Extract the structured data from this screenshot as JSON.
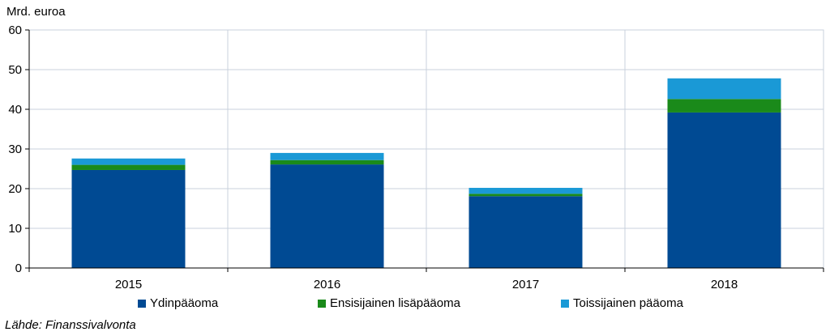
{
  "chart_data": {
    "type": "bar",
    "stacked": true,
    "categories": [
      "2015",
      "2016",
      "2017",
      "2018"
    ],
    "series": [
      {
        "name": "Ydinpääoma",
        "values": [
          24.7,
          26.1,
          18.1,
          39.2
        ],
        "color": "#004a93"
      },
      {
        "name": "Ensisijainen lisäpääoma",
        "values": [
          1.3,
          1.1,
          0.6,
          3.4
        ],
        "color": "#1a8a1a"
      },
      {
        "name": "Toissijainen pääoma",
        "values": [
          1.6,
          1.8,
          1.5,
          5.2
        ],
        "color": "#1a99d6"
      }
    ],
    "ylabel": "Mrd. euroa",
    "ylim": [
      0,
      60
    ],
    "yticks": [
      0,
      10,
      20,
      30,
      40,
      50,
      60
    ],
    "grid": true,
    "legend_position": "bottom"
  },
  "source": "Lähde: Finanssivalvonta"
}
